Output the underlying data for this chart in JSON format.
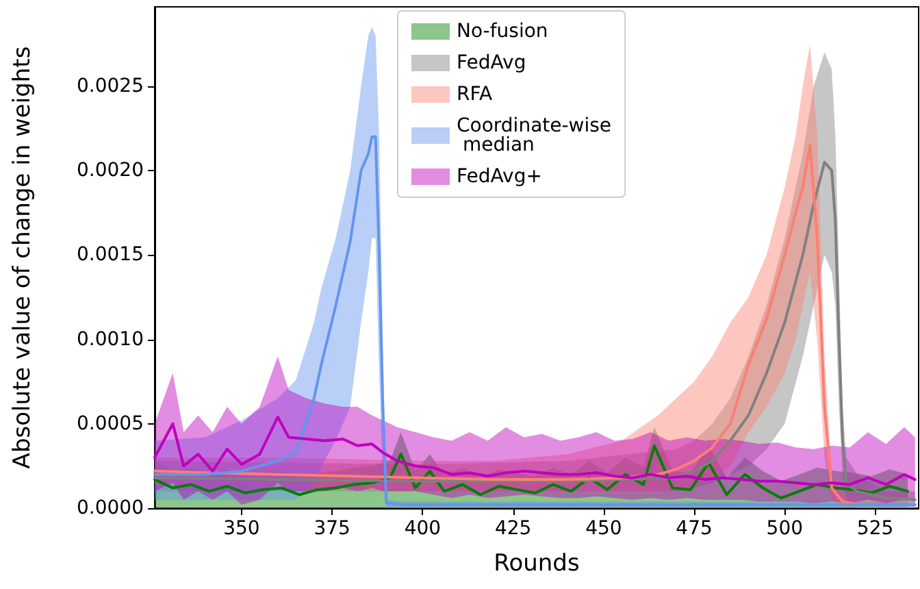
{
  "chart_data": {
    "type": "line",
    "xlabel": "Rounds",
    "ylabel": "Absolute value of change in weights",
    "xlim": [
      326,
      537
    ],
    "xticks": [
      350,
      375,
      400,
      425,
      450,
      475,
      500,
      525
    ],
    "ylim": [
      0,
      0.00297
    ],
    "yticks": [
      {
        "value": 0,
        "label": "0.0000"
      },
      {
        "value": 0.0005,
        "label": "0.0005"
      },
      {
        "value": 0.001,
        "label": "0.0010"
      },
      {
        "value": 0.0015,
        "label": "0.0015"
      },
      {
        "value": 0.002,
        "label": "0.0020"
      },
      {
        "value": 0.0025,
        "label": "0.0025"
      }
    ],
    "grid": false,
    "legend": "top",
    "series": [
      {
        "name": "No-fusion",
        "color": "#008000",
        "x": [
          326,
          331,
          336,
          341,
          346,
          351,
          356,
          361,
          366,
          371,
          376,
          381,
          386,
          391,
          394,
          398,
          402,
          406,
          411,
          416,
          421,
          426,
          431,
          436,
          441,
          446,
          451,
          456,
          461,
          464,
          469,
          474,
          479,
          484,
          489,
          494,
          499,
          504,
          509,
          514,
          519,
          524,
          529,
          534
        ],
        "values": [
          0.00017,
          0.00012,
          0.00014,
          0.0001,
          0.00013,
          9e-05,
          0.00011,
          0.00012,
          8e-05,
          0.00011,
          0.00012,
          0.00014,
          0.00015,
          0.00018,
          0.00032,
          0.00012,
          0.00022,
          0.0001,
          0.00014,
          8e-05,
          0.00013,
          0.00011,
          9e-05,
          0.00014,
          0.0001,
          0.00018,
          0.00011,
          0.0002,
          0.00014,
          0.00037,
          0.00012,
          0.00011,
          0.00027,
          8e-05,
          0.0002,
          0.00012,
          6e-05,
          0.0001,
          0.00014,
          0.00012,
          0.00011,
          9e-05,
          0.00013,
          0.0001
        ],
        "upper": [
          0.00028,
          0.00022,
          0.00024,
          0.0002,
          0.00023,
          0.00019,
          0.00021,
          0.00022,
          0.00018,
          0.00021,
          0.00022,
          0.00024,
          0.00025,
          0.00028,
          0.00045,
          0.00022,
          0.00032,
          0.0002,
          0.00024,
          0.00018,
          0.00023,
          0.00021,
          0.00019,
          0.00024,
          0.0002,
          0.00028,
          0.00021,
          0.0003,
          0.00024,
          0.00048,
          0.00022,
          0.00021,
          0.00037,
          0.00018,
          0.0003,
          0.00022,
          0.00016,
          0.0002,
          0.00024,
          0.00022,
          0.00021,
          0.00019,
          0.00023,
          0.0002
        ],
        "lower": [
          0,
          0,
          0,
          0,
          0,
          0,
          0,
          0,
          0,
          0,
          0,
          0,
          0,
          0,
          0,
          0,
          0,
          0,
          0,
          0,
          0,
          0,
          0,
          0,
          0,
          0,
          0,
          0,
          0,
          0,
          0,
          0,
          0,
          0,
          0,
          0,
          0,
          0,
          0,
          0,
          0,
          0,
          0,
          0
        ]
      },
      {
        "name": "FedAvg",
        "color": "#808080",
        "x": [
          326,
          360,
          400,
          440,
          470,
          475,
          480,
          485,
          490,
          495,
          500,
          505,
          508,
          511,
          513,
          514,
          515,
          516,
          517,
          520,
          528,
          536
        ],
        "values": [
          0.00018,
          0.00017,
          0.00016,
          0.00016,
          0.00018,
          0.00022,
          0.00028,
          0.0004,
          0.00055,
          0.0008,
          0.0011,
          0.0015,
          0.0018,
          0.00205,
          0.002,
          0.0017,
          0.001,
          0.0004,
          0.00015,
          0.0001,
          6e-05,
          5e-05
        ],
        "upper": [
          0.00028,
          0.00027,
          0.00026,
          0.00028,
          0.00035,
          0.0004,
          0.0005,
          0.00065,
          0.0009,
          0.0012,
          0.0016,
          0.0021,
          0.0025,
          0.0027,
          0.0026,
          0.0022,
          0.0014,
          0.0006,
          0.0003,
          0.0002,
          0.0001,
          0.0001
        ],
        "lower": [
          0.0001,
          0.0001,
          0.0001,
          0.0001,
          0.0001,
          0.00012,
          0.00015,
          0.0002,
          0.00025,
          0.00035,
          0.0005,
          0.0009,
          0.0012,
          0.0015,
          0.0014,
          0.0012,
          0.0006,
          0.0002,
          5e-05,
          3e-05,
          2e-05,
          2e-05
        ]
      },
      {
        "name": "RFA",
        "color": "#fa8072",
        "x": [
          326,
          340,
          360,
          380,
          400,
          420,
          440,
          455,
          465,
          470,
          475,
          480,
          485,
          490,
          495,
          500,
          503,
          505,
          507,
          509,
          511,
          513,
          516,
          520,
          528,
          536
        ],
        "values": [
          0.00022,
          0.00021,
          0.0002,
          0.00019,
          0.00018,
          0.00017,
          0.00017,
          0.00018,
          0.0002,
          0.00023,
          0.00028,
          0.00036,
          0.0005,
          0.00085,
          0.00112,
          0.0015,
          0.00175,
          0.0019,
          0.00215,
          0.0016,
          0.0006,
          0.00012,
          4e-05,
          2e-05,
          2e-05,
          2e-05
        ],
        "upper": [
          0.0003,
          0.0003,
          0.0003,
          0.00029,
          0.00028,
          0.00028,
          0.00032,
          0.0004,
          0.00055,
          0.00065,
          0.00075,
          0.0009,
          0.0011,
          0.00125,
          0.0015,
          0.0019,
          0.0022,
          0.0025,
          0.00275,
          0.0022,
          0.0009,
          0.0002,
          8e-05,
          5e-05,
          5e-05,
          5e-05
        ],
        "lower": [
          0.00014,
          0.00013,
          0.00012,
          0.00011,
          0.0001,
          0.0001,
          0.0001,
          0.0001,
          0.0001,
          0.00011,
          0.00013,
          0.00018,
          0.00025,
          0.00045,
          0.0006,
          0.0008,
          0.001,
          0.0012,
          0.0014,
          0.001,
          0.0003,
          5e-05,
          1e-05,
          0,
          0,
          0
        ]
      },
      {
        "name": "Coordinate-wise\n median",
        "color": "#6495ed",
        "x": [
          326,
          340,
          350,
          360,
          365,
          370,
          372,
          376,
          380,
          383,
          385,
          386,
          387,
          388,
          389,
          390,
          395,
          420,
          460,
          500,
          536
        ],
        "values": [
          0.0002,
          0.0002,
          0.00022,
          0.00028,
          0.00033,
          0.00065,
          0.00085,
          0.0012,
          0.00158,
          0.002,
          0.0021,
          0.0022,
          0.0022,
          0.0015,
          0.0006,
          3e-05,
          2e-05,
          2e-05,
          2e-05,
          2e-05,
          2e-05
        ],
        "upper": [
          0.0004,
          0.00042,
          0.00052,
          0.00065,
          0.00076,
          0.0011,
          0.0013,
          0.0016,
          0.002,
          0.0025,
          0.0028,
          0.00285,
          0.0028,
          0.0022,
          0.001,
          5e-05,
          4e-05,
          4e-05,
          4e-05,
          4e-05,
          4e-05
        ],
        "lower": [
          5e-05,
          5e-05,
          5e-05,
          5e-05,
          5e-05,
          0.00015,
          0.00025,
          0.0004,
          0.0006,
          0.0011,
          0.0014,
          0.0016,
          0.0016,
          0.0008,
          0.0002,
          0,
          0,
          0,
          0,
          0,
          0
        ]
      },
      {
        "name": "FedAvg+",
        "color": "#bf00bf",
        "x": [
          326,
          331,
          334,
          338,
          342,
          346,
          350,
          355,
          360,
          363,
          368,
          373,
          378,
          382,
          386,
          389,
          393,
          398,
          403,
          408,
          413,
          418,
          423,
          428,
          433,
          438,
          443,
          448,
          453,
          458,
          463,
          468,
          473,
          478,
          483,
          488,
          493,
          498,
          503,
          508,
          513,
          518,
          523,
          528,
          533,
          536
        ],
        "values": [
          0.0003,
          0.0005,
          0.00025,
          0.00032,
          0.00022,
          0.00035,
          0.00026,
          0.00032,
          0.00054,
          0.00042,
          0.00041,
          0.0004,
          0.00041,
          0.00037,
          0.00038,
          0.00033,
          0.00028,
          0.00025,
          0.00024,
          0.0002,
          0.00021,
          0.00019,
          0.00021,
          0.00022,
          0.00021,
          0.0002,
          0.0002,
          0.00021,
          0.00019,
          0.00018,
          0.0002,
          0.00018,
          0.00019,
          0.00017,
          0.00018,
          0.00017,
          0.00016,
          0.00016,
          0.00015,
          0.00014,
          0.00015,
          0.00014,
          0.00018,
          0.00014,
          0.0002,
          0.00017
        ],
        "upper": [
          0.0005,
          0.0008,
          0.00045,
          0.00055,
          0.00045,
          0.0006,
          0.0005,
          0.0006,
          0.0009,
          0.0007,
          0.00065,
          0.00062,
          0.0006,
          0.0006,
          0.00055,
          0.00052,
          0.00048,
          0.00045,
          0.00042,
          0.0004,
          0.00045,
          0.0004,
          0.00048,
          0.00042,
          0.00044,
          0.0004,
          0.00042,
          0.00045,
          0.0004,
          0.00041,
          0.00045,
          0.0004,
          0.00042,
          0.0004,
          0.00041,
          0.0004,
          0.00038,
          0.00039,
          0.00036,
          0.00035,
          0.00037,
          0.00036,
          0.00045,
          0.00038,
          0.00048,
          0.00042
        ],
        "lower": [
          0.0001,
          0.00015,
          5e-05,
          0.0001,
          5e-05,
          0.0001,
          2e-05,
          5e-05,
          0.00015,
          0.0001,
          0.0001,
          0.0001,
          0.00012,
          0.0001,
          0.00012,
          0.0001,
          0.0001,
          0.0001,
          8e-05,
          6e-05,
          8e-05,
          6e-05,
          7e-05,
          8e-05,
          7e-05,
          6e-05,
          6e-05,
          7e-05,
          6e-05,
          5e-05,
          6e-05,
          5e-05,
          6e-05,
          5e-05,
          5e-05,
          5e-05,
          4e-05,
          4e-05,
          4e-05,
          3e-05,
          4e-05,
          3e-05,
          5e-05,
          3e-05,
          5e-05,
          4e-05
        ]
      }
    ]
  }
}
